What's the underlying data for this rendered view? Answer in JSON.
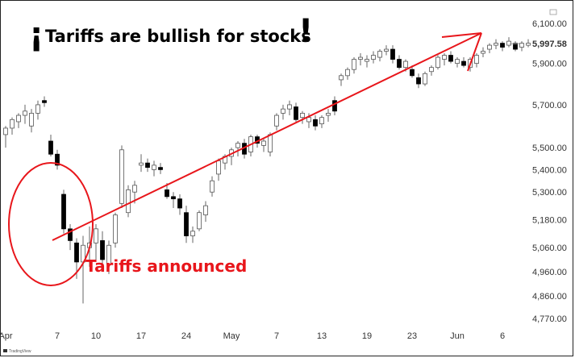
{
  "chart_data": {
    "type": "candlestick",
    "title": "Tariffs are bullish for stocks",
    "title_prefix": "¡",
    "title_suffix": "!",
    "annotation": "Tariffs announced",
    "ylim": [
      4700,
      6150
    ],
    "y_scale": "log",
    "y_ticks": [
      "6,100.00",
      "5,900.00",
      "5,700.00",
      "5,500.00",
      "5,400.00",
      "5,300.00",
      "5,180.00",
      "5,060.00",
      "4,960.00",
      "4,860.00",
      "4,770.00"
    ],
    "y_tick_values": [
      6100,
      5900,
      5700,
      5500,
      5400,
      5300,
      5180,
      5060,
      4960,
      4860,
      4770
    ],
    "last_price": "5,997.58",
    "last_price_value": 5997.58,
    "x_ticks": [
      "Apr",
      "7",
      "10",
      "17",
      "24",
      "May",
      "7",
      "13",
      "19",
      "23",
      "Jun",
      "6"
    ],
    "x_tick_bar_index": [
      0,
      8,
      14,
      21,
      28,
      35,
      42,
      49,
      56,
      63,
      70,
      77
    ],
    "grid": false,
    "colors": {
      "up": "#ffffff",
      "down": "#000000",
      "wick": "#666666",
      "arrow": "#e8161b",
      "annotation": "#e8161b"
    },
    "footer": "TradingView",
    "candles": [
      [
        5560,
        5600,
        5500,
        5590
      ],
      [
        5590,
        5640,
        5560,
        5630
      ],
      [
        5620,
        5660,
        5590,
        5650
      ],
      [
        5650,
        5700,
        5610,
        5670
      ],
      [
        5600,
        5680,
        5570,
        5660
      ],
      [
        5660,
        5720,
        5630,
        5700
      ],
      [
        5720,
        5740,
        5690,
        5710
      ],
      [
        5530,
        5560,
        5460,
        5470
      ],
      [
        5470,
        5490,
        5400,
        5420
      ],
      [
        5290,
        5310,
        5120,
        5140
      ],
      [
        5140,
        5160,
        5050,
        5090
      ],
      [
        5080,
        5100,
        4930,
        5000
      ],
      [
        5000,
        5110,
        4830,
        5070
      ],
      [
        5060,
        5150,
        4980,
        5080
      ],
      [
        5080,
        5160,
        5000,
        5140
      ],
      [
        5090,
        5130,
        4990,
        5010
      ],
      [
        4990,
        5090,
        4950,
        5070
      ],
      [
        5080,
        5210,
        5060,
        5200
      ],
      [
        5250,
        5510,
        5230,
        5490
      ],
      [
        5210,
        5330,
        5190,
        5310
      ],
      [
        5300,
        5350,
        5250,
        5330
      ],
      [
        5420,
        5470,
        5390,
        5430
      ],
      [
        5430,
        5450,
        5390,
        5410
      ],
      [
        5400,
        5440,
        5370,
        5420
      ],
      [
        5410,
        5430,
        5380,
        5400
      ],
      [
        5310,
        5340,
        5270,
        5280
      ],
      [
        5280,
        5300,
        5230,
        5270
      ],
      [
        5270,
        5290,
        5200,
        5230
      ],
      [
        5210,
        5240,
        5080,
        5110
      ],
      [
        5110,
        5150,
        5080,
        5130
      ],
      [
        5140,
        5220,
        5130,
        5210
      ],
      [
        5200,
        5260,
        5170,
        5240
      ],
      [
        5300,
        5370,
        5280,
        5350
      ],
      [
        5380,
        5450,
        5350,
        5440
      ],
      [
        5430,
        5470,
        5400,
        5460
      ],
      [
        5460,
        5500,
        5420,
        5490
      ],
      [
        5500,
        5530,
        5460,
        5520
      ],
      [
        5520,
        5540,
        5450,
        5470
      ],
      [
        5480,
        5560,
        5460,
        5550
      ],
      [
        5550,
        5560,
        5500,
        5520
      ],
      [
        5510,
        5540,
        5480,
        5530
      ],
      [
        5480,
        5570,
        5460,
        5560
      ],
      [
        5600,
        5660,
        5580,
        5650
      ],
      [
        5660,
        5700,
        5630,
        5680
      ],
      [
        5680,
        5720,
        5650,
        5700
      ],
      [
        5690,
        5710,
        5620,
        5630
      ],
      [
        5640,
        5670,
        5610,
        5660
      ],
      [
        5620,
        5660,
        5590,
        5640
      ],
      [
        5630,
        5650,
        5580,
        5600
      ],
      [
        5610,
        5650,
        5590,
        5640
      ],
      [
        5650,
        5680,
        5620,
        5660
      ],
      [
        5720,
        5740,
        5650,
        5670
      ],
      [
        5820,
        5850,
        5790,
        5840
      ],
      [
        5840,
        5880,
        5820,
        5870
      ],
      [
        5870,
        5930,
        5850,
        5920
      ],
      [
        5920,
        5950,
        5890,
        5930
      ],
      [
        5910,
        5940,
        5880,
        5920
      ],
      [
        5920,
        5960,
        5900,
        5940
      ],
      [
        5930,
        5970,
        5910,
        5960
      ],
      [
        5960,
        5990,
        5940,
        5970
      ],
      [
        5970,
        5990,
        5900,
        5920
      ],
      [
        5920,
        5940,
        5870,
        5880
      ],
      [
        5880,
        5920,
        5860,
        5910
      ],
      [
        5870,
        5890,
        5830,
        5840
      ],
      [
        5830,
        5850,
        5780,
        5800
      ],
      [
        5800,
        5860,
        5790,
        5850
      ],
      [
        5860,
        5890,
        5840,
        5880
      ],
      [
        5880,
        5940,
        5870,
        5930
      ],
      [
        5920,
        5950,
        5890,
        5940
      ],
      [
        5940,
        5960,
        5900,
        5910
      ],
      [
        5900,
        5930,
        5880,
        5920
      ],
      [
        5910,
        5930,
        5880,
        5890
      ],
      [
        5880,
        5930,
        5860,
        5920
      ],
      [
        5900,
        5950,
        5880,
        5940
      ],
      [
        5950,
        5980,
        5930,
        5960
      ],
      [
        5970,
        6000,
        5950,
        5990
      ],
      [
        5990,
        6020,
        5970,
        6000
      ],
      [
        6000,
        6010,
        5960,
        5980
      ],
      [
        5990,
        6030,
        5980,
        6010
      ],
      [
        6000,
        6010,
        5960,
        5970
      ],
      [
        5980,
        6010,
        5960,
        6000
      ],
      [
        5990,
        6020,
        5980,
        6000
      ]
    ]
  }
}
